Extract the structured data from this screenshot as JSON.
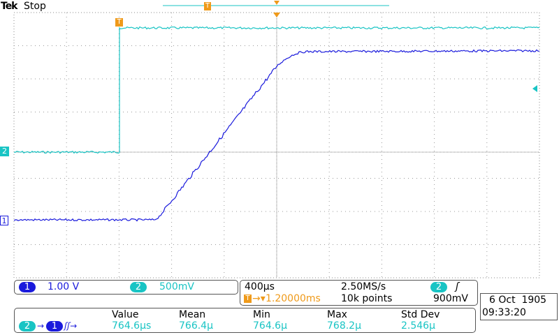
{
  "header": {
    "brand": "Tek",
    "status": "Stop"
  },
  "markers": {
    "ch1": "1",
    "ch2": "2",
    "trigger": "T"
  },
  "channels": [
    {
      "label": "1",
      "scale": "1.00 V"
    },
    {
      "label": "2",
      "scale": "500mV"
    }
  ],
  "timebase": {
    "scale": "400µs",
    "sample_rate": "2.50MS/s",
    "trigger_position": "1.20000ms",
    "record_length": "10k points",
    "trigger_source": "2",
    "trigger_level": "900mV"
  },
  "datetime": {
    "date": "6 Oct  1905",
    "time": "09:33:20"
  },
  "measurement": {
    "source": "2",
    "target": "1",
    "columns": [
      "Value",
      "Mean",
      "Min",
      "Max",
      "Std Dev"
    ],
    "values": [
      "764.6µs",
      "766.4µ",
      "764.6µ",
      "768.2µ",
      "2.546µ"
    ]
  }
}
